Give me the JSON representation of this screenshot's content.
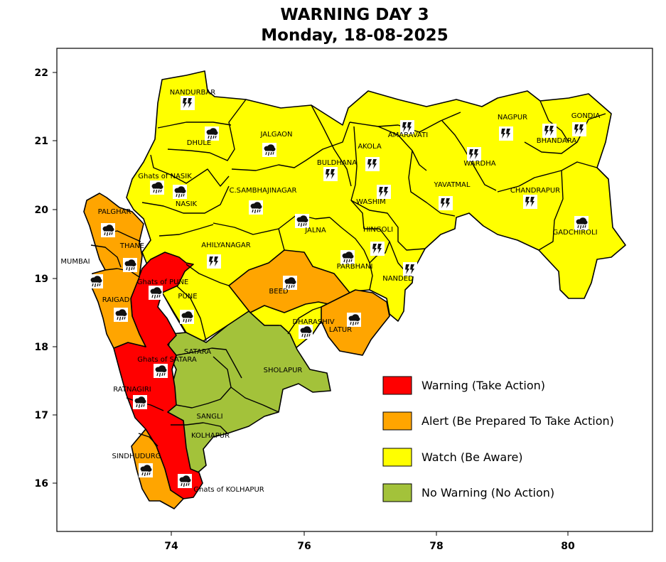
{
  "title": {
    "line1": "WARNING DAY 3",
    "line2": "Monday, 18-08-2025"
  },
  "colors": {
    "warning": "#ff0000",
    "alert": "#ffa500",
    "watch": "#ffff00",
    "none": "#a3c23a"
  },
  "axes": {
    "x_ticks": [
      "74",
      "76",
      "78",
      "80"
    ],
    "y_ticks": [
      "22",
      "21",
      "20",
      "19",
      "18",
      "17",
      "16"
    ]
  },
  "legend": [
    {
      "level": "warning",
      "label": "Warning (Take Action)"
    },
    {
      "level": "alert",
      "label": "Alert (Be Prepared To Take Action)"
    },
    {
      "level": "watch",
      "label": "Watch (Be Aware)"
    },
    {
      "level": "none",
      "label": "No Warning (No Action)"
    }
  ],
  "districts": {
    "nandurbar": {
      "label": "NANDURBAR",
      "level": "watch",
      "icon": "thunderstorm-icon"
    },
    "dhule": {
      "label": "DHULE",
      "level": "watch",
      "icon": "rain-cloud-icon"
    },
    "jalgaon": {
      "label": "JALGAON",
      "level": "watch",
      "icon": "rain-cloud-icon"
    },
    "ghats_nasik": {
      "label": "Ghats of NASIK",
      "level": "watch",
      "icon": "rain-cloud-icon"
    },
    "nasik": {
      "label": "NASIK",
      "level": "watch",
      "icon": "rain-cloud-icon"
    },
    "buldhana": {
      "label": "BULDHANA",
      "level": "watch",
      "icon": "thunderstorm-icon"
    },
    "akola": {
      "label": "AKOLA",
      "level": "watch",
      "icon": "thunderstorm-icon"
    },
    "amaravati": {
      "label": "AMARAVATI",
      "level": "watch",
      "icon": "thunderstorm-icon"
    },
    "nagpur": {
      "label": "NAGPUR",
      "level": "watch",
      "icon": "thunderstorm-icon"
    },
    "bhandara": {
      "label": "BHANDARA",
      "level": "watch",
      "icon": "thunderstorm-icon"
    },
    "gondia": {
      "label": "GONDIA",
      "level": "watch",
      "icon": "thunderstorm-icon"
    },
    "wardha": {
      "label": "WARDHA",
      "level": "watch",
      "icon": "thunderstorm-icon"
    },
    "sambhajinagar": {
      "label": "C.SAMBHAJINAGAR",
      "level": "watch",
      "icon": "rain-cloud-icon"
    },
    "washim": {
      "label": "WASHIM",
      "level": "watch",
      "icon": "thunderstorm-icon"
    },
    "yavatmal": {
      "label": "YAVATMAL",
      "level": "watch",
      "icon": "thunderstorm-icon"
    },
    "chandrapur": {
      "label": "CHANDRAPUR",
      "level": "watch",
      "icon": "thunderstorm-icon"
    },
    "gadchiroli": {
      "label": "GADCHIROLI",
      "level": "watch",
      "icon": "rain-cloud-icon"
    },
    "palghar": {
      "label": "PALGHAR",
      "level": "alert",
      "icon": "rain-cloud-icon"
    },
    "jalna": {
      "label": "JALNA",
      "level": "watch",
      "icon": "rain-cloud-icon"
    },
    "hingoli": {
      "label": "HINGOLI",
      "level": "watch",
      "icon": "thunderstorm-icon"
    },
    "thane": {
      "label": "THANE",
      "level": "alert",
      "icon": "rain-cloud-icon"
    },
    "ahilyanagar": {
      "label": "AHILYANAGAR",
      "level": "watch",
      "icon": "thunderstorm-icon"
    },
    "mumbai": {
      "label": "MUMBAI",
      "level": "alert",
      "icon": "rain-cloud-icon"
    },
    "parbhani": {
      "label": "PARBHANI",
      "level": "watch",
      "icon": "rain-cloud-icon"
    },
    "ghats_pune": {
      "label": "Ghats of PUNE",
      "level": "warning",
      "icon": "rain-cloud-icon"
    },
    "beed": {
      "label": "BEED",
      "level": "alert",
      "icon": "rain-cloud-icon"
    },
    "nanded": {
      "label": "NANDED",
      "level": "watch",
      "icon": "thunderstorm-icon"
    },
    "raigad": {
      "label": "RAIGAD",
      "level": "alert",
      "icon": "rain-cloud-icon"
    },
    "pune": {
      "label": "PUNE",
      "level": "watch",
      "icon": "rain-cloud-icon"
    },
    "dharashiv": {
      "label": "DHARASHIV",
      "level": "watch",
      "icon": "rain-cloud-icon"
    },
    "latur": {
      "label": "LATUR",
      "level": "alert",
      "icon": "rain-cloud-icon"
    },
    "satara": {
      "label": "SATARA",
      "level": "none",
      "icon": ""
    },
    "ghats_satara": {
      "label": "Ghats of SATARA",
      "level": "warning",
      "icon": "rain-cloud-icon"
    },
    "sholapur": {
      "label": "SHOLAPUR",
      "level": "none",
      "icon": ""
    },
    "ratnagiri": {
      "label": "RATNAGIRI",
      "level": "warning",
      "icon": "rain-cloud-icon"
    },
    "sangli": {
      "label": "SANGLI",
      "level": "none",
      "icon": ""
    },
    "kolhapur": {
      "label": "KOLHAPUR",
      "level": "none",
      "icon": ""
    },
    "sindhudurg": {
      "label": "SINDHUDURG",
      "level": "alert",
      "icon": "rain-cloud-icon"
    },
    "ghats_kolhapur": {
      "label": "Ghats of KOLHAPUR",
      "level": "warning",
      "icon": "rain-cloud-icon"
    }
  }
}
